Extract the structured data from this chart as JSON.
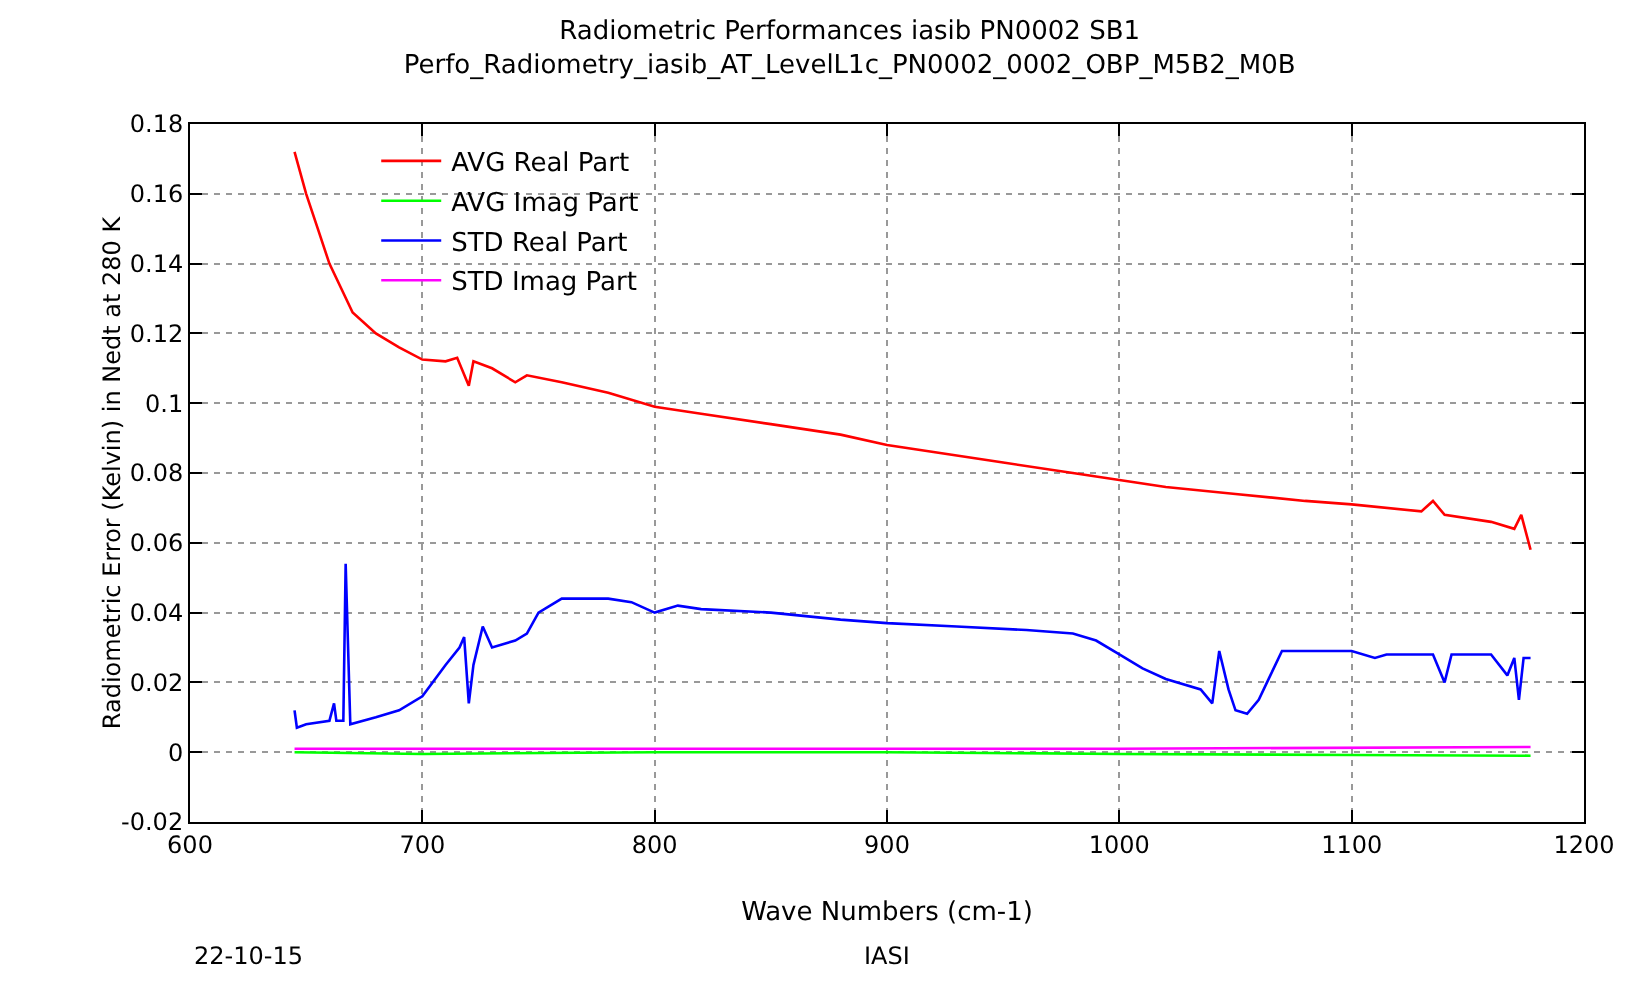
{
  "chart_data": {
    "type": "line",
    "title": "Radiometric Performances iasib PN0002 SB1",
    "subtitle": "Perfo_Radiometry_iasib_AT_LevelL1c_PN0002_0002_OBP_M5B2_M0B",
    "xlabel": "Wave Numbers (cm-1)",
    "ylabel": "Radiometric Error (Kelvin) in Nedt at 280 K",
    "annotations": [
      "22-10-15",
      "IASI"
    ],
    "xlim": [
      600,
      1200
    ],
    "xticks": [
      600,
      700,
      800,
      900,
      1000,
      1100,
      1200
    ],
    "ylim": [
      -0.02,
      0.18
    ],
    "yticks": [
      -0.02,
      0,
      0.02,
      0.04,
      0.06,
      0.08,
      0.1,
      0.12,
      0.14,
      0.16,
      0.18
    ],
    "grid": true,
    "legend": "top left",
    "line_style": "solid",
    "marker": "none",
    "series": [
      {
        "name": "AVG Real Part",
        "color": "#ff0000",
        "x": [
          645,
          650,
          655,
          660,
          665,
          670,
          680,
          690,
          700,
          710,
          715,
          720,
          722,
          730,
          740,
          745,
          760,
          780,
          800,
          820,
          850,
          880,
          900,
          920,
          950,
          980,
          1000,
          1020,
          1050,
          1080,
          1100,
          1130,
          1135,
          1140,
          1160,
          1170,
          1173,
          1177
        ],
        "values": [
          0.172,
          0.16,
          0.15,
          0.14,
          0.133,
          0.126,
          0.12,
          0.116,
          0.1125,
          0.112,
          0.113,
          0.105,
          0.112,
          0.11,
          0.106,
          0.108,
          0.106,
          0.103,
          0.099,
          0.097,
          0.094,
          0.091,
          0.088,
          0.086,
          0.083,
          0.08,
          0.078,
          0.076,
          0.074,
          0.072,
          0.071,
          0.069,
          0.072,
          0.068,
          0.066,
          0.064,
          0.068,
          0.058
        ]
      },
      {
        "name": "AVG Imag Part",
        "color": "#00ff00",
        "x": [
          645,
          700,
          800,
          900,
          1000,
          1100,
          1177
        ],
        "values": [
          0,
          -0.0005,
          0,
          0,
          -0.0005,
          -0.0008,
          -0.001
        ]
      },
      {
        "name": "STD Real Part",
        "color": "#0000ff",
        "x": [
          645,
          646,
          650,
          660,
          662,
          663,
          666,
          667,
          669,
          680,
          690,
          700,
          710,
          716,
          718,
          720,
          722,
          726,
          730,
          740,
          745,
          750,
          760,
          780,
          790,
          800,
          810,
          820,
          850,
          880,
          900,
          930,
          960,
          980,
          990,
          1000,
          1010,
          1020,
          1035,
          1040,
          1043,
          1047,
          1050,
          1055,
          1060,
          1065,
          1070,
          1090,
          1100,
          1110,
          1115,
          1135,
          1140,
          1143,
          1160,
          1167,
          1170,
          1172,
          1174,
          1177
        ],
        "values": [
          0.012,
          0.007,
          0.008,
          0.009,
          0.014,
          0.009,
          0.009,
          0.054,
          0.008,
          0.01,
          0.012,
          0.016,
          0.025,
          0.03,
          0.033,
          0.014,
          0.025,
          0.036,
          0.03,
          0.032,
          0.034,
          0.04,
          0.044,
          0.044,
          0.043,
          0.04,
          0.042,
          0.041,
          0.04,
          0.038,
          0.037,
          0.036,
          0.035,
          0.034,
          0.032,
          0.028,
          0.024,
          0.021,
          0.018,
          0.014,
          0.029,
          0.018,
          0.012,
          0.011,
          0.015,
          0.022,
          0.029,
          0.029,
          0.029,
          0.027,
          0.028,
          0.028,
          0.02,
          0.028,
          0.028,
          0.022,
          0.027,
          0.015,
          0.027,
          0.027
        ]
      },
      {
        "name": "STD Imag Part",
        "color": "#ff00ff",
        "x": [
          645,
          800,
          1000,
          1177
        ],
        "values": [
          0.001,
          0.001,
          0.001,
          0.0015
        ]
      }
    ]
  }
}
